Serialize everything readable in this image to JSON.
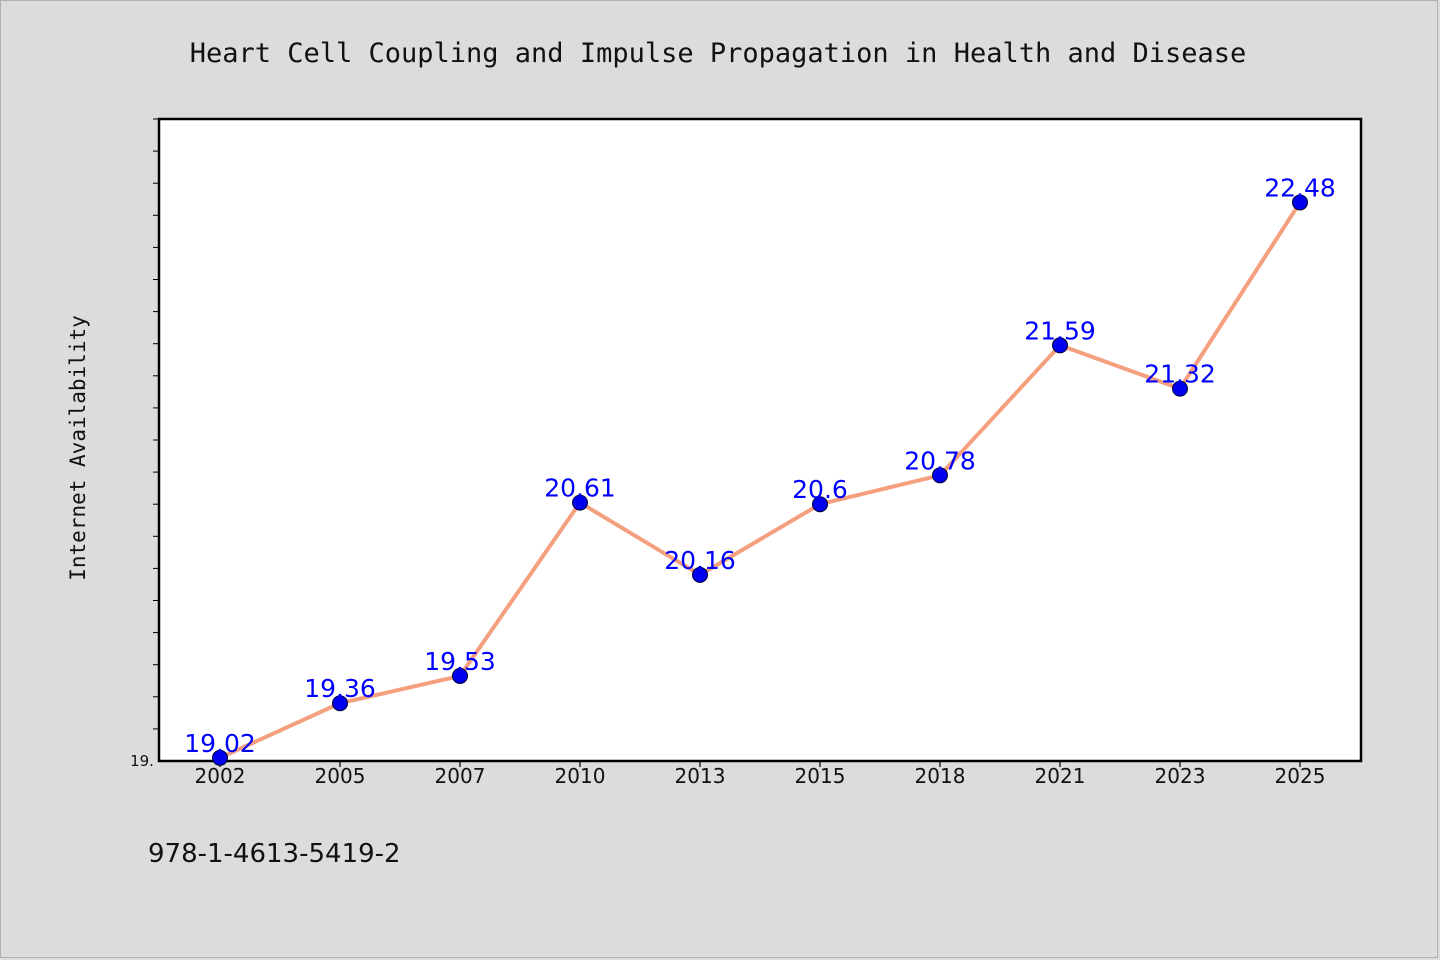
{
  "chart_data": {
    "type": "line",
    "title": "Heart Cell Coupling and Impulse Propagation in Health and Disease",
    "ylabel": "Internet Availability",
    "xlabel": "",
    "y_tick_label": "19.",
    "categories": [
      "2002",
      "2005",
      "2007",
      "2010",
      "2013",
      "2015",
      "2018",
      "2021",
      "2023",
      "2025"
    ],
    "series": [
      {
        "values": [
          19.02,
          19.36,
          19.53,
          20.61,
          20.16,
          20.6,
          20.78,
          21.59,
          21.32,
          22.48
        ],
        "labels": [
          "19.02",
          "19.36",
          "19.53",
          "20.61",
          "20.16",
          "20.6",
          "20.78",
          "21.59",
          "21.32",
          "22.48"
        ]
      }
    ],
    "ylim": [
      19.0,
      23.0
    ],
    "grid": false,
    "legend": "none",
    "colors": {
      "line": "#f4a07f",
      "marker": "#0000ee",
      "label": "#0000ff",
      "background": "#dcdcdc",
      "plot_bg": "#ffffff"
    }
  },
  "footer": {
    "note": "978-1-4613-5419-2"
  }
}
